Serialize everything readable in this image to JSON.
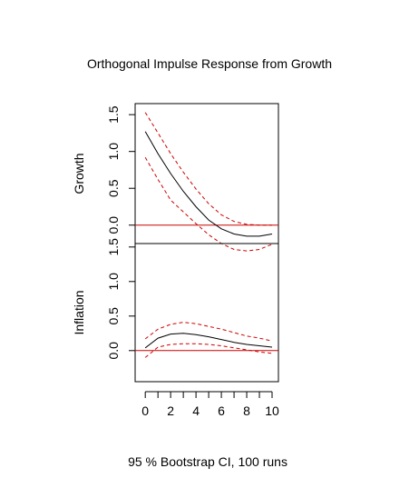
{
  "chart_data": {
    "type": "line",
    "title": "Orthogonal Impulse Response from Growth",
    "xlabel": "95 % Bootstrap CI,  100 runs",
    "x": [
      0,
      1,
      2,
      3,
      4,
      5,
      6,
      7,
      8,
      9,
      10
    ],
    "xticks": [
      "0",
      "2",
      "4",
      "6",
      "8",
      "10"
    ],
    "panels": [
      {
        "ylabel": "Growth",
        "yticks": [
          "0.0",
          "0.5",
          "1.0",
          "1.5"
        ],
        "ylim": [
          -0.25,
          1.65
        ],
        "zero_line_color": "#cc0000",
        "series": [
          {
            "style": "solid",
            "color": "#000000",
            "values": [
              1.27,
              0.97,
              0.7,
              0.46,
              0.25,
              0.07,
              -0.05,
              -0.12,
              -0.15,
              -0.15,
              -0.12
            ]
          },
          {
            "style": "dashed",
            "color": "#cc0000",
            "values": [
              1.53,
              1.25,
              0.97,
              0.72,
              0.49,
              0.29,
              0.14,
              0.05,
              0.01,
              0.0,
              0.0
            ]
          },
          {
            "style": "dashed",
            "color": "#cc0000",
            "values": [
              0.92,
              0.62,
              0.34,
              0.18,
              0.02,
              -0.13,
              -0.25,
              -0.33,
              -0.35,
              -0.33,
              -0.26
            ]
          }
        ]
      },
      {
        "ylabel": "Inflation",
        "yticks": [
          "0.0",
          "0.5",
          "1.0",
          "1.5"
        ],
        "ylim": [
          -0.45,
          1.55
        ],
        "zero_line_color": "#cc0000",
        "series": [
          {
            "style": "solid",
            "color": "#000000",
            "values": [
              0.04,
              0.18,
              0.24,
              0.25,
              0.23,
              0.2,
              0.16,
              0.12,
              0.09,
              0.07,
              0.05
            ]
          },
          {
            "style": "dashed",
            "color": "#cc0000",
            "values": [
              0.17,
              0.31,
              0.38,
              0.41,
              0.39,
              0.35,
              0.31,
              0.26,
              0.21,
              0.18,
              0.14
            ]
          },
          {
            "style": "dashed",
            "color": "#cc0000",
            "values": [
              -0.1,
              0.05,
              0.09,
              0.1,
              0.1,
              0.09,
              0.07,
              0.04,
              0.01,
              -0.02,
              -0.04
            ]
          }
        ]
      }
    ]
  }
}
